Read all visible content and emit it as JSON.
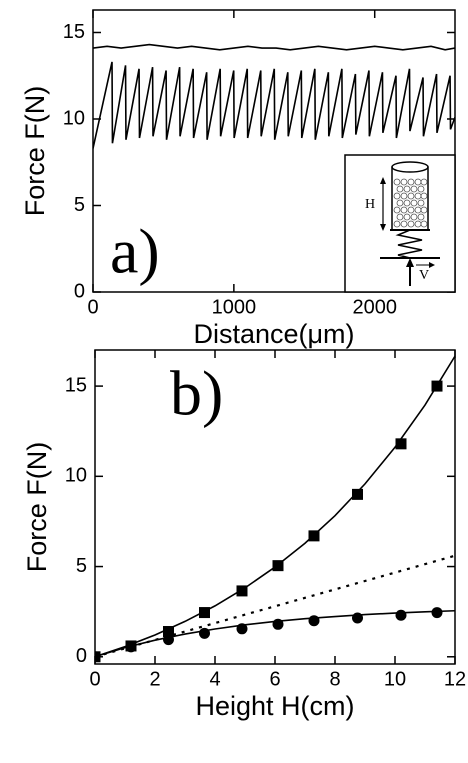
{
  "chart_data": [
    {
      "type": "line",
      "annotation": "a)",
      "xlabel": "Distance(μm)",
      "ylabel": "Force F(N)",
      "xlim": [
        0,
        2570
      ],
      "xticks": [
        0,
        1000,
        2000
      ],
      "ylim": [
        0,
        16.3
      ],
      "yticks": [
        0,
        5,
        10,
        15
      ],
      "inset_labels": [
        "H",
        "V"
      ],
      "series": [
        {
          "color": "#000000",
          "style": "solid",
          "x": [
            0,
            100,
            200,
            300,
            400,
            500,
            600,
            700,
            800,
            900,
            1000,
            1100,
            1200,
            1300,
            1400,
            1500,
            1600,
            1700,
            1800,
            1900,
            2000,
            2100,
            2200,
            2300,
            2400,
            2500,
            2570
          ],
          "values": [
            14.1,
            14.2,
            14.1,
            14.2,
            14.3,
            14.2,
            14.1,
            14.2,
            14.1,
            14.0,
            14.1,
            14.2,
            14.1,
            14.1,
            14.0,
            14.1,
            14.2,
            14.1,
            14.0,
            14.1,
            14.2,
            14.1,
            14.0,
            14.1,
            14.2,
            14.0,
            14.1
          ]
        },
        {
          "color": "#000000",
          "style": "solid",
          "x": [
            0,
            135,
            138,
            231,
            234,
            327,
            330,
            423,
            426,
            519,
            522,
            615,
            618,
            711,
            714,
            807,
            810,
            903,
            906,
            999,
            1002,
            1095,
            1098,
            1191,
            1194,
            1287,
            1290,
            1383,
            1386,
            1479,
            1482,
            1575,
            1578,
            1671,
            1674,
            1767,
            1770,
            1863,
            1866,
            1959,
            1962,
            2055,
            2058,
            2151,
            2154,
            2247,
            2250,
            2343,
            2346,
            2439,
            2442,
            2535,
            2538,
            2570
          ],
          "values": [
            8.3,
            13.3,
            8.6,
            13.1,
            8.8,
            12.9,
            8.9,
            13.0,
            9.0,
            12.8,
            8.8,
            13.0,
            9.0,
            12.9,
            8.9,
            12.7,
            8.8,
            12.9,
            9.0,
            12.8,
            8.9,
            12.9,
            8.9,
            12.8,
            9.0,
            12.9,
            8.8,
            12.7,
            9.0,
            12.8,
            8.9,
            12.9,
            8.8,
            12.7,
            9.0,
            12.9,
            8.9,
            12.6,
            9.1,
            12.8,
            9.0,
            12.7,
            9.2,
            12.5,
            8.9,
            12.9,
            9.3,
            12.4,
            9.0,
            12.6,
            9.2,
            12.5,
            9.4,
            10.1
          ]
        }
      ]
    },
    {
      "type": "line",
      "annotation": "b)",
      "xlabel": "Height H(cm)",
      "ylabel": "Force F(N)",
      "xlim": [
        0,
        12
      ],
      "xticks": [
        0,
        2,
        4,
        6,
        8,
        10,
        12
      ],
      "ylim": [
        -0.4,
        17
      ],
      "yticks": [
        0,
        5,
        10,
        15
      ],
      "series": [
        {
          "color": "#000000",
          "style": "markers",
          "marker": "square",
          "x": [
            0,
            1.2,
            2.45,
            3.65,
            4.9,
            6.1,
            7.3,
            8.75,
            10.2,
            11.4
          ],
          "values": [
            0,
            0.6,
            1.4,
            2.45,
            3.65,
            5.05,
            6.7,
            9.0,
            11.8,
            15.0
          ]
        },
        {
          "color": "#000000",
          "style": "markers",
          "marker": "circle",
          "x": [
            0,
            1.2,
            2.45,
            3.65,
            4.9,
            6.1,
            7.3,
            8.75,
            10.2,
            11.4
          ],
          "values": [
            0,
            0.55,
            0.95,
            1.3,
            1.55,
            1.8,
            2.0,
            2.15,
            2.3,
            2.45
          ]
        },
        {
          "color": "#000000",
          "style": "solid",
          "x": [
            0,
            1,
            2,
            3,
            4,
            5,
            6,
            7,
            8,
            9,
            10,
            11,
            12
          ],
          "values": [
            0,
            0.56,
            1.21,
            1.96,
            2.82,
            3.82,
            4.97,
            6.29,
            7.82,
            9.58,
            11.61,
            13.95,
            16.66
          ]
        },
        {
          "color": "#000000",
          "style": "solid",
          "x": [
            0,
            1,
            2,
            3,
            4,
            5,
            6,
            7,
            8,
            9,
            10,
            11,
            12
          ],
          "values": [
            0,
            0.51,
            0.92,
            1.26,
            1.54,
            1.77,
            1.96,
            2.11,
            2.23,
            2.34,
            2.42,
            2.49,
            2.55
          ]
        },
        {
          "color": "#000000",
          "style": "dotted",
          "x": [
            0,
            12
          ],
          "values": [
            0,
            5.6
          ]
        }
      ]
    }
  ]
}
